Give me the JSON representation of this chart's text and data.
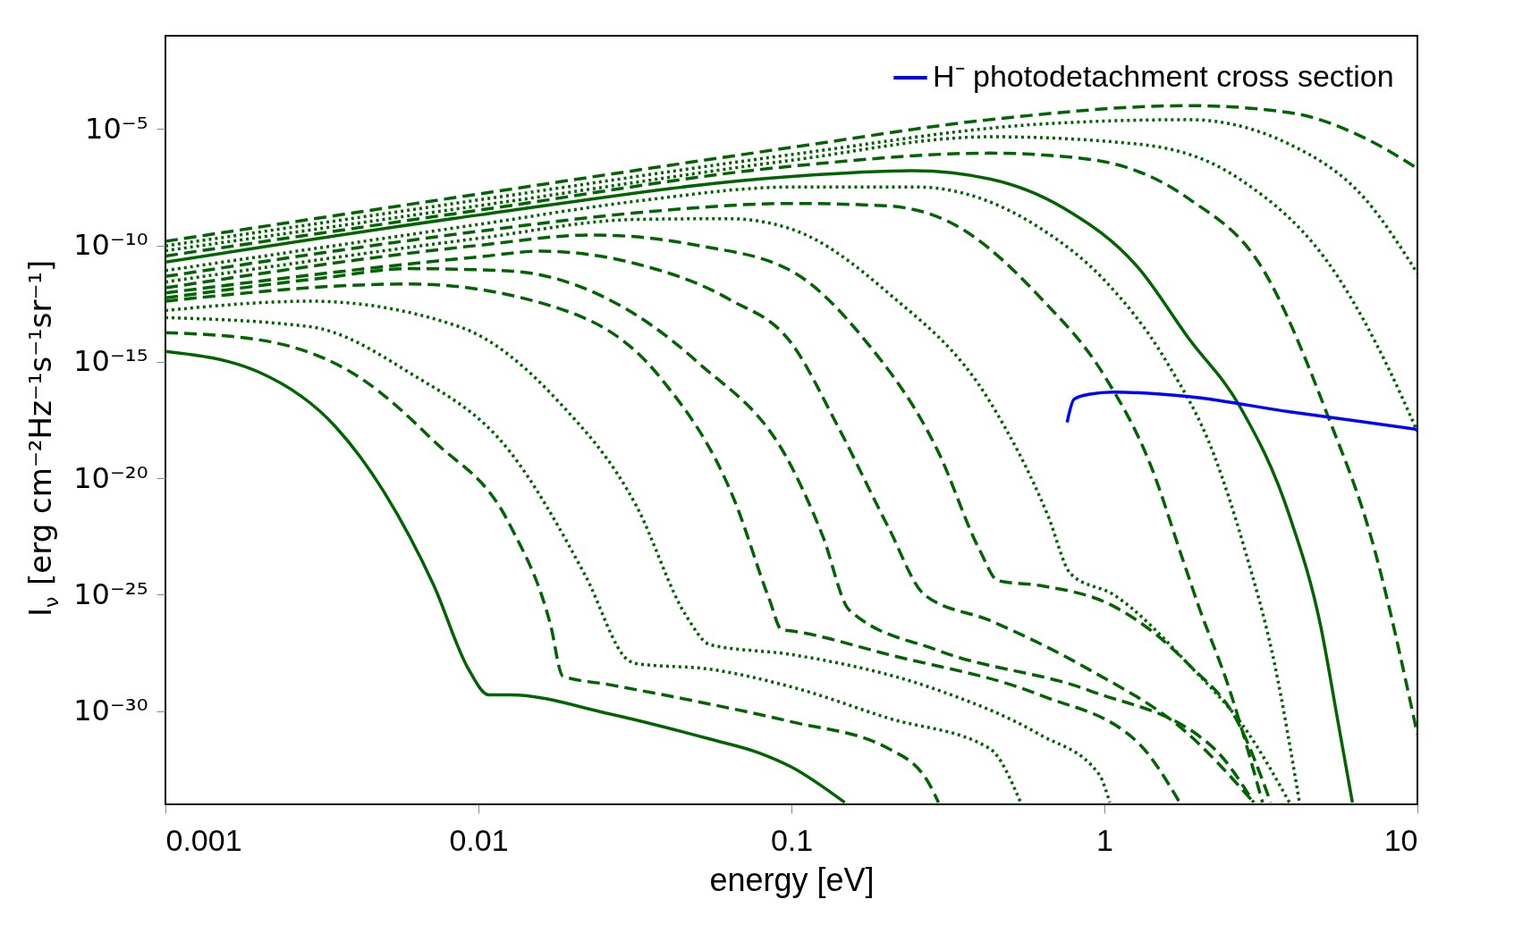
{
  "chart_data": {
    "type": "line",
    "xlabel": "energy [eV]",
    "ylabel": "I$_{ν}$ [erg cm⁻²Hz⁻¹s⁻¹sr⁻¹]",
    "log": "xy",
    "grid": false,
    "legend": "top right",
    "marker": "none",
    "xlim": [
      0.001,
      10
    ],
    "xticks": [
      0.001,
      0.01,
      0.1,
      1,
      10
    ],
    "ylim": [
      1e-34,
      0.1
    ],
    "yticks": [
      {
        "value": 1e-30,
        "label": "10⁻³⁰"
      },
      {
        "value": 1e-25,
        "label": "10⁻²⁵"
      },
      {
        "value": 1e-20,
        "label": "10⁻²⁰"
      },
      {
        "value": 1e-15,
        "label": "10⁻¹⁵"
      },
      {
        "value": 1e-10,
        "label": "10⁻¹⁰"
      },
      {
        "value": 1e-05,
        "label": "10⁻⁵"
      }
    ],
    "series": [
      {
        "color": "#006400",
        "line_style": "solid",
        "x": [
          0.001,
          0.002,
          0.0035,
          0.005,
          0.0072,
          0.0093,
          0.0108,
          0.0126,
          0.026,
          0.055,
          0.079,
          0.1,
          0.148
        ],
        "values": [
          2.8e-15,
          3.5e-16,
          1.6e-18,
          2.5e-21,
          2.5e-25,
          6.3e-29,
          5e-30,
          5e-30,
          7.9e-31,
          6.3e-32,
          1.6e-32,
          4e-33,
          1.2e-34
        ]
      },
      {
        "color": "#006400",
        "line_style": "dashed",
        "x": [
          0.001,
          0.002,
          0.0042,
          0.0072,
          0.0126,
          0.017,
          0.0186,
          0.026,
          0.055,
          0.1,
          0.204,
          0.275,
          0.295
        ],
        "values": [
          1.8e-14,
          8.7e-15,
          2e-16,
          4e-19,
          1e-22,
          5e-27,
          3.2e-29,
          1.4e-29,
          2e-30,
          3.5e-31,
          2.5e-32,
          7.9e-34,
          1.2e-34
        ]
      },
      {
        "color": "#006400",
        "line_style": "dotted",
        "x": [
          0.001,
          0.0029,
          0.006,
          0.0126,
          0.022,
          0.03,
          0.032,
          0.055,
          0.1,
          0.204,
          0.43,
          0.54
        ],
        "values": [
          7.9e-14,
          3.2e-14,
          3.5e-16,
          1.4e-19,
          6.3e-25,
          1.6e-28,
          1.1e-28,
          6.3e-29,
          1.1e-29,
          5e-31,
          2.5e-32,
          1.2e-34
        ]
      },
      {
        "color": "#006400",
        "line_style": "dotted",
        "x": [
          0.001,
          0.0029,
          0.0087,
          0.018,
          0.032,
          0.046,
          0.055,
          0.1,
          0.295,
          0.62,
          0.96,
          1.04
        ],
        "values": [
          1.6e-13,
          4e-13,
          3.2e-14,
          2e-17,
          6.3e-22,
          1.3e-26,
          7.1e-28,
          2.7e-28,
          7.9e-30,
          1e-31,
          2e-33,
          1.2e-34
        ]
      },
      {
        "color": "#006400",
        "line_style": "dashed",
        "x": [
          0.001,
          0.006,
          0.018,
          0.038,
          0.066,
          0.085,
          0.093,
          0.1,
          0.204,
          0.62,
          1.29,
          1.74
        ],
        "values": [
          4e-13,
          2.2e-12,
          2e-13,
          2.2e-16,
          1e-21,
          6.3e-26,
          3.2e-27,
          2.8e-27,
          2.7e-28,
          5e-30,
          4e-32,
          1.2e-34
        ]
      },
      {
        "color": "#006400",
        "line_style": "dashed",
        "x": [
          0.001,
          0.0032,
          0.006,
          0.0126,
          0.025,
          0.05,
          0.1,
          0.126,
          0.153,
          0.295,
          0.89,
          2.24,
          3.0
        ],
        "values": [
          5.6e-13,
          4e-12,
          1e-11,
          7.9e-12,
          6.3e-13,
          1e-15,
          3.2e-20,
          3.2e-23,
          2.2e-26,
          4e-28,
          7.9e-30,
          2.5e-32,
          1.2e-34
        ]
      },
      {
        "color": "#006400",
        "line_style": "dashed",
        "x": [
          0.001,
          0.01,
          0.0158,
          0.032,
          0.063,
          0.1,
          0.141,
          0.204,
          0.266,
          0.43,
          0.89,
          1.86,
          3.0
        ],
        "values": [
          9.1e-13,
          3.2e-11,
          5.6e-11,
          1.6e-11,
          5e-13,
          6.3e-15,
          1.6e-18,
          7.9e-23,
          1e-25,
          7.9e-27,
          6.3e-29,
          1e-31,
          1.2e-34
        ]
      },
      {
        "color": "#006400",
        "line_style": "dashed",
        "x": [
          0.001,
          0.01,
          0.023,
          0.05,
          0.1,
          0.17,
          0.295,
          0.4,
          0.457,
          0.62,
          1.07,
          1.86,
          2.7,
          3.4
        ],
        "values": [
          1.5e-12,
          1e-10,
          2.8e-10,
          1e-10,
          7.9e-12,
          1e-14,
          1.3e-19,
          7.9e-24,
          4e-25,
          2.5e-25,
          3.2e-26,
          1e-28,
          2.5e-31,
          1.2e-34
        ]
      },
      {
        "color": "#006400",
        "line_style": "dotted",
        "x": [
          0.001,
          0.01,
          0.032,
          0.063,
          0.1,
          0.204,
          0.43,
          0.66,
          0.78,
          1.07,
          1.86,
          2.9,
          3.9
        ],
        "values": [
          2.7e-12,
          2e-10,
          1.3e-09,
          1.4e-09,
          5e-10,
          8.9e-13,
          2e-17,
          2.5e-22,
          7.9e-25,
          1e-25,
          1e-28,
          1e-31,
          1.2e-34
        ]
      },
      {
        "color": "#006400",
        "line_style": "dashed",
        "x": [
          0.001,
          0.01,
          0.032,
          0.1,
          0.2,
          0.32,
          0.63,
          1.0,
          1.41,
          1.78,
          2.0,
          2.5,
          3.2
        ],
        "values": [
          4.6e-12,
          4e-10,
          2.5e-09,
          6.3e-09,
          5e-09,
          1e-09,
          5e-13,
          2.5e-16,
          3.2e-20,
          3.2e-24,
          3.2e-26,
          1e-29,
          1.2e-34
        ]
      },
      {
        "color": "#006400",
        "line_style": "dotted",
        "x": [
          0.001,
          0.01,
          0.032,
          0.1,
          0.25,
          0.63,
          1.0,
          1.58,
          2.24,
          2.8,
          3.5,
          4.2
        ],
        "values": [
          8.3e-12,
          7.9e-10,
          7.9e-09,
          3.2e-08,
          3.2e-08,
          5e-10,
          3.2e-12,
          1e-15,
          1e-19,
          1e-23,
          1e-28,
          1.2e-34
        ]
      },
      {
        "color": "#006400",
        "line_style": "solid",
        "x": [
          0.001,
          0.01,
          0.1,
          0.245,
          0.43,
          0.74,
          1.29,
          1.86,
          2.7,
          3.9,
          4.9,
          5.6,
          6.2
        ],
        "values": [
          1.9e-11,
          2e-09,
          9.1e-08,
          1.6e-07,
          7.1e-08,
          4e-09,
          1e-11,
          1e-14,
          1.3e-17,
          2.5e-22,
          5e-27,
          2.5e-31,
          1.2e-34
        ]
      },
      {
        "color": "#006400",
        "line_style": "dashed",
        "x": [
          0.001,
          0.01,
          0.1,
          0.43,
          0.89,
          1.86,
          3.2,
          5.2,
          7.1,
          10
        ],
        "values": [
          3.5e-11,
          3.2e-09,
          2.5e-07,
          9.1e-07,
          5e-07,
          1e-08,
          1e-11,
          4e-18,
          3.2e-23,
          1e-31
        ]
      },
      {
        "color": "#006400",
        "line_style": "dotted",
        "x": [
          0.001,
          0.01,
          0.1,
          0.43,
          1.29,
          2.7,
          5.6,
          8.1,
          10
        ],
        "values": [
          5.9e-11,
          5e-09,
          4.5e-07,
          4.6e-06,
          2.2e-06,
          7.1e-08,
          4e-12,
          5e-16,
          1e-18
        ]
      },
      {
        "color": "#006400",
        "line_style": "dotted",
        "x": [
          0.001,
          0.01,
          0.1,
          0.62,
          1.86,
          3.9,
          6.8,
          10
        ],
        "values": [
          9.5e-11,
          8.9e-09,
          7.9e-07,
          1.6e-05,
          2.5e-05,
          2.2e-06,
          1e-08,
          6.3e-12
        ]
      },
      {
        "color": "#006400",
        "line_style": "dashed",
        "x": [
          0.001,
          0.01,
          0.1,
          0.43,
          1.86,
          3.9,
          6.8,
          10
        ],
        "values": [
          1.5e-10,
          1.6e-08,
          1.6e-06,
          2.5e-05,
          0.0001,
          5e-05,
          4e-06,
          2e-07
        ]
      },
      {
        "name": "H⁻ photodetachment cross section",
        "color": "#0000ff",
        "line_style": "solid",
        "x": [
          0.76,
          0.8,
          0.89,
          1.07,
          1.86,
          3.9,
          10
        ],
        "values": [
          2.5e-18,
          2.5e-17,
          4e-17,
          5e-17,
          3.2e-17,
          7.1e-18,
          1.26e-18
        ]
      }
    ]
  }
}
